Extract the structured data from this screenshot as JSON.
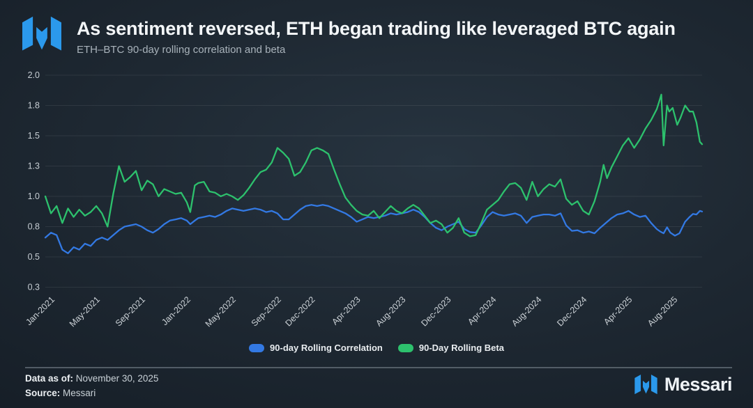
{
  "header": {
    "title": "As sentiment reversed, ETH began trading like leveraged BTC again",
    "subtitle": "ETH–BTC 90-day rolling correlation and beta"
  },
  "branding": {
    "logo_color": "#2b99ec",
    "wordmark": "Messari"
  },
  "legend": [
    {
      "label": "90-day Rolling Correlation",
      "color": "#3379e3"
    },
    {
      "label": "90-Day Rolling Beta",
      "color": "#2dc16d"
    }
  ],
  "footer": {
    "data_as_of_label": "Data as of:",
    "data_as_of_value": "November 30, 2025",
    "source_label": "Source:",
    "source_value": "Messari"
  },
  "chart_data": {
    "type": "line",
    "title": "As sentiment reversed, ETH began trading like leveraged BTC again",
    "subtitle": "ETH–BTC 90-day rolling correlation and beta",
    "xlabel": "",
    "ylabel": "",
    "x_unit": "months since Jan-2021",
    "ylim": [
      0.25,
      2.0
    ],
    "grid": true,
    "legend_position": "bottom",
    "gridline_color": "rgba(255,255,255,0.08)",
    "yticks": [
      {
        "value": 2.0,
        "label": "2.0"
      },
      {
        "value": 1.75,
        "label": "1.8"
      },
      {
        "value": 1.5,
        "label": "1.5"
      },
      {
        "value": 1.25,
        "label": "1.3"
      },
      {
        "value": 1.0,
        "label": "1.0"
      },
      {
        "value": 0.75,
        "label": "0.8"
      },
      {
        "value": 0.5,
        "label": "0.5"
      },
      {
        "value": 0.25,
        "label": "0.3"
      }
    ],
    "xticks": [
      {
        "m": 0,
        "label": "Jan-2021"
      },
      {
        "m": 4,
        "label": "May-2021"
      },
      {
        "m": 8,
        "label": "Sep-2021"
      },
      {
        "m": 12,
        "label": "Jan-2022"
      },
      {
        "m": 16,
        "label": "May-2022"
      },
      {
        "m": 20,
        "label": "Sep-2022"
      },
      {
        "m": 23,
        "label": "Dec-2022"
      },
      {
        "m": 27,
        "label": "Apr-2023"
      },
      {
        "m": 31,
        "label": "Aug-2023"
      },
      {
        "m": 35,
        "label": "Dec-2023"
      },
      {
        "m": 39,
        "label": "Apr-2024"
      },
      {
        "m": 43,
        "label": "Aug-2024"
      },
      {
        "m": 47,
        "label": "Dec-2024"
      },
      {
        "m": 51,
        "label": "Apr-2025"
      },
      {
        "m": 55,
        "label": "Aug-2025"
      }
    ],
    "series": [
      {
        "name": "90-day Rolling Correlation",
        "color": "#3379e3",
        "x": [
          0,
          0.5,
          1,
          1.5,
          2,
          2.5,
          3,
          3.5,
          4,
          4.5,
          5,
          5.5,
          6,
          6.5,
          7,
          7.5,
          8,
          8.5,
          9,
          9.5,
          10,
          10.5,
          11,
          11.5,
          12,
          12.5,
          12.8,
          13.2,
          13.5,
          14,
          14.5,
          15,
          15.5,
          16,
          16.5,
          17,
          17.5,
          18,
          18.5,
          19,
          19.5,
          20,
          20.5,
          21,
          21.5,
          22,
          22.5,
          23,
          23.5,
          24,
          24.5,
          25,
          25.5,
          26,
          26.5,
          27,
          27.5,
          28,
          28.5,
          29,
          29.5,
          30,
          30.5,
          31,
          31.5,
          32,
          32.5,
          33,
          33.5,
          34,
          34.5,
          35,
          35.5,
          36,
          36.5,
          37,
          37.5,
          38,
          38.5,
          39,
          39.5,
          40,
          40.5,
          41,
          41.5,
          42,
          42.5,
          43,
          43.5,
          44,
          44.5,
          45,
          45.5,
          46,
          46.5,
          47,
          47.5,
          48,
          48.5,
          49,
          49.5,
          50,
          50.5,
          51,
          51.5,
          52,
          52.5,
          53,
          53.5,
          54,
          54.3,
          54.6,
          54.9,
          55.2,
          55.6,
          56,
          56.5,
          56.9,
          57.2,
          57.5,
          57.8,
          58
        ],
        "values": [
          0.66,
          0.7,
          0.68,
          0.56,
          0.53,
          0.58,
          0.56,
          0.61,
          0.59,
          0.64,
          0.66,
          0.64,
          0.68,
          0.72,
          0.75,
          0.76,
          0.77,
          0.75,
          0.72,
          0.7,
          0.73,
          0.77,
          0.8,
          0.81,
          0.82,
          0.8,
          0.77,
          0.8,
          0.82,
          0.83,
          0.84,
          0.83,
          0.85,
          0.88,
          0.9,
          0.89,
          0.88,
          0.89,
          0.9,
          0.89,
          0.87,
          0.88,
          0.86,
          0.81,
          0.81,
          0.85,
          0.89,
          0.92,
          0.93,
          0.92,
          0.93,
          0.92,
          0.9,
          0.88,
          0.86,
          0.83,
          0.79,
          0.81,
          0.83,
          0.82,
          0.83,
          0.84,
          0.86,
          0.85,
          0.86,
          0.87,
          0.89,
          0.87,
          0.83,
          0.78,
          0.74,
          0.72,
          0.75,
          0.77,
          0.79,
          0.73,
          0.705,
          0.7,
          0.76,
          0.83,
          0.87,
          0.85,
          0.84,
          0.85,
          0.86,
          0.84,
          0.78,
          0.83,
          0.84,
          0.85,
          0.85,
          0.84,
          0.86,
          0.76,
          0.715,
          0.72,
          0.7,
          0.71,
          0.695,
          0.74,
          0.78,
          0.82,
          0.85,
          0.86,
          0.88,
          0.85,
          0.83,
          0.84,
          0.78,
          0.73,
          0.71,
          0.695,
          0.745,
          0.7,
          0.675,
          0.695,
          0.79,
          0.83,
          0.855,
          0.85,
          0.88,
          0.875
        ]
      },
      {
        "name": "90-Day Rolling Beta",
        "color": "#2dc16d",
        "x": [
          0,
          0.5,
          1,
          1.5,
          2,
          2.5,
          3,
          3.5,
          4,
          4.5,
          5,
          5.5,
          6,
          6.5,
          7,
          7.5,
          8,
          8.5,
          9,
          9.5,
          10,
          10.5,
          11,
          11.5,
          12,
          12.5,
          12.8,
          13.2,
          13.5,
          14,
          14.5,
          15,
          15.5,
          16,
          16.5,
          17,
          17.5,
          18,
          18.5,
          19,
          19.5,
          20,
          20.5,
          21,
          21.5,
          22,
          22.5,
          23,
          23.5,
          24,
          24.5,
          25,
          25.5,
          26,
          26.5,
          27,
          27.5,
          28,
          28.5,
          29,
          29.5,
          30,
          30.5,
          31,
          31.5,
          32,
          32.5,
          33,
          33.5,
          34,
          34.5,
          35,
          35.5,
          36,
          36.5,
          37,
          37.5,
          38,
          38.5,
          39,
          39.5,
          40,
          40.5,
          41,
          41.5,
          42,
          42.5,
          43,
          43.5,
          44,
          44.5,
          45,
          45.5,
          46,
          46.5,
          47,
          47.5,
          48,
          48.5,
          49,
          49.3,
          49.6,
          50,
          50.5,
          51,
          51.5,
          52,
          52.5,
          53,
          53.5,
          54,
          54.2,
          54.4,
          54.6,
          54.9,
          55.1,
          55.4,
          55.8,
          56.1,
          56.5,
          56.9,
          57.2,
          57.5,
          57.8,
          58
        ],
        "values": [
          1.0,
          0.86,
          0.92,
          0.78,
          0.9,
          0.83,
          0.89,
          0.84,
          0.87,
          0.92,
          0.86,
          0.75,
          1.02,
          1.25,
          1.12,
          1.16,
          1.21,
          1.05,
          1.13,
          1.1,
          1.0,
          1.06,
          1.04,
          1.02,
          1.03,
          0.95,
          0.87,
          1.09,
          1.11,
          1.12,
          1.04,
          1.03,
          1.0,
          1.02,
          1.0,
          0.97,
          1.01,
          1.07,
          1.14,
          1.2,
          1.22,
          1.28,
          1.4,
          1.36,
          1.31,
          1.17,
          1.2,
          1.28,
          1.38,
          1.4,
          1.38,
          1.35,
          1.22,
          1.1,
          0.99,
          0.93,
          0.88,
          0.85,
          0.84,
          0.88,
          0.82,
          0.87,
          0.92,
          0.88,
          0.86,
          0.9,
          0.93,
          0.9,
          0.84,
          0.78,
          0.8,
          0.77,
          0.7,
          0.74,
          0.82,
          0.7,
          0.67,
          0.68,
          0.78,
          0.89,
          0.93,
          0.97,
          1.04,
          1.1,
          1.11,
          1.07,
          0.97,
          1.12,
          1.0,
          1.06,
          1.1,
          1.08,
          1.14,
          0.98,
          0.93,
          0.96,
          0.88,
          0.85,
          0.96,
          1.12,
          1.26,
          1.15,
          1.24,
          1.33,
          1.42,
          1.48,
          1.4,
          1.47,
          1.56,
          1.63,
          1.72,
          1.78,
          1.84,
          1.42,
          1.75,
          1.7,
          1.73,
          1.59,
          1.65,
          1.75,
          1.7,
          1.7,
          1.61,
          1.45,
          1.43
        ]
      }
    ]
  }
}
